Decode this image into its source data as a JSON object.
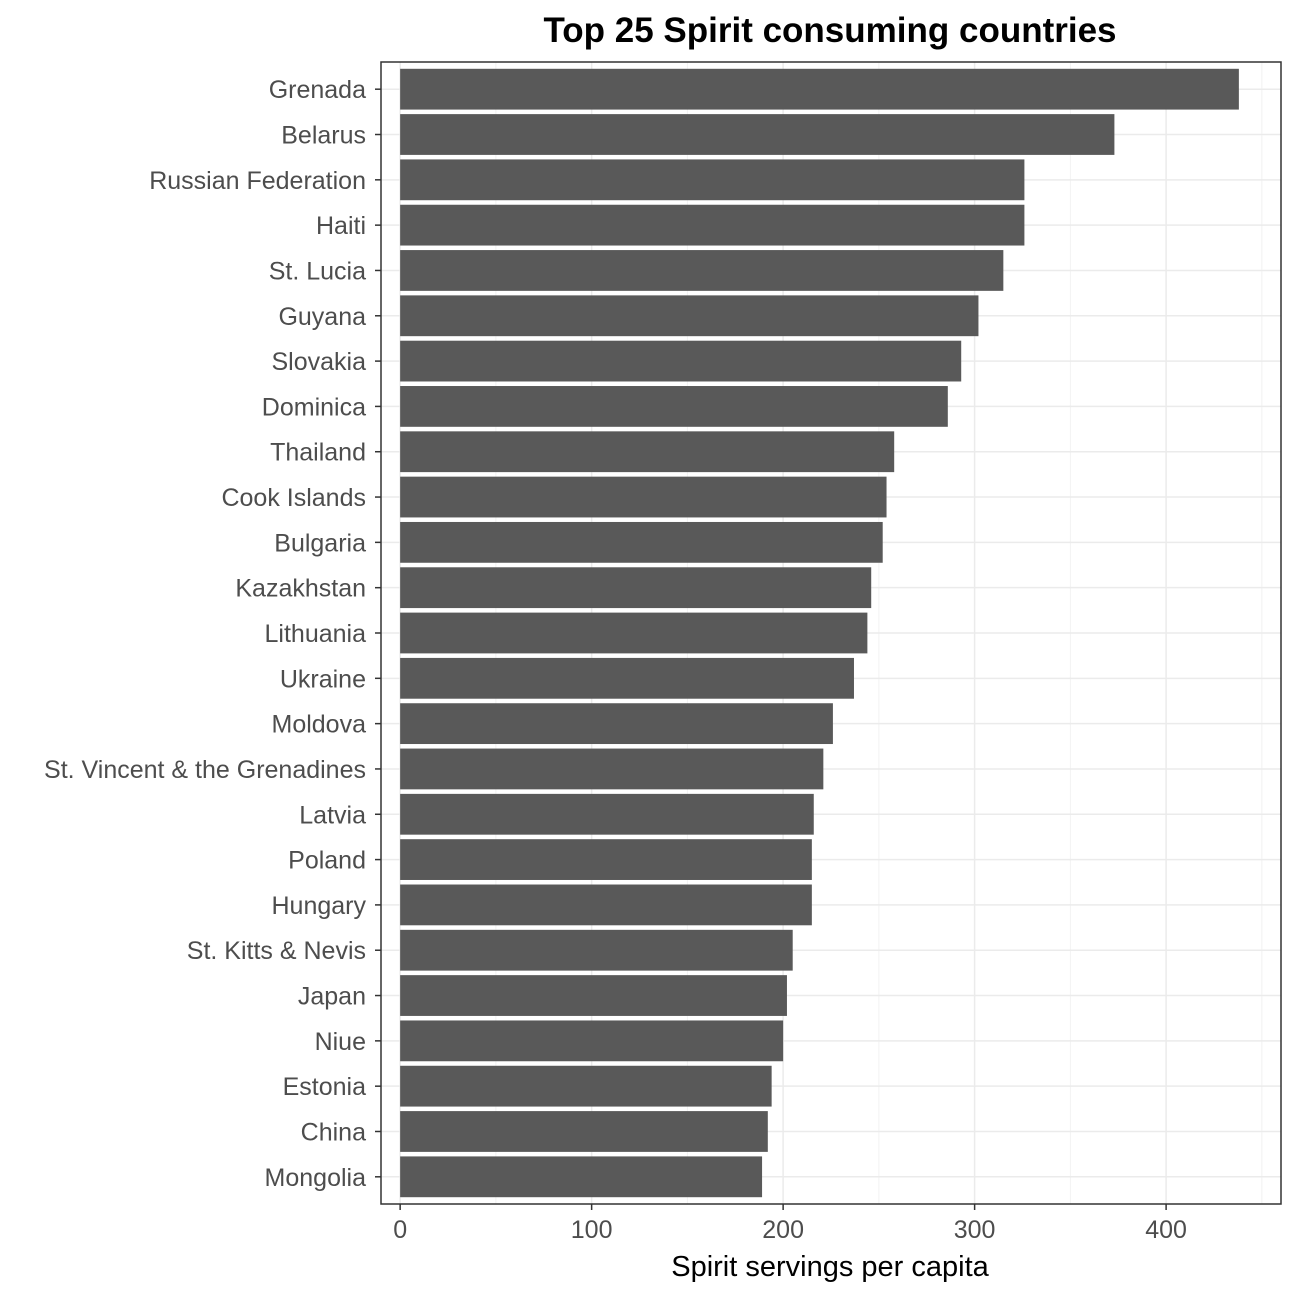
{
  "chart_data": {
    "type": "bar",
    "orientation": "horizontal",
    "title": "Top 25 Spirit consuming countries",
    "xlabel": "Spirit servings per capita",
    "ylabel": "",
    "xlim": [
      -10,
      460
    ],
    "xticks": [
      0,
      100,
      200,
      300,
      400
    ],
    "grid": true,
    "bar_color": "#595959",
    "categories": [
      "Grenada",
      "Belarus",
      "Russian Federation",
      "Haiti",
      "St. Lucia",
      "Guyana",
      "Slovakia",
      "Dominica",
      "Thailand",
      "Cook Islands",
      "Bulgaria",
      "Kazakhstan",
      "Lithuania",
      "Ukraine",
      "Moldova",
      "St. Vincent & the Grenadines",
      "Latvia",
      "Poland",
      "Hungary",
      "St. Kitts & Nevis",
      "Japan",
      "Niue",
      "Estonia",
      "China",
      "Mongolia"
    ],
    "values": [
      438,
      373,
      326,
      326,
      315,
      302,
      293,
      286,
      258,
      254,
      252,
      246,
      244,
      237,
      226,
      221,
      216,
      215,
      215,
      205,
      202,
      200,
      194,
      192,
      189
    ]
  }
}
